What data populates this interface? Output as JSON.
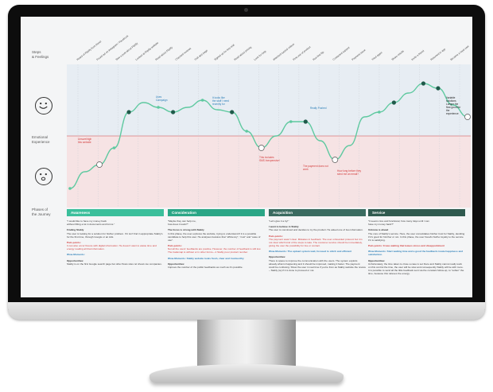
{
  "row_labels": {
    "steps": "Steps\n& Feelings",
    "emotion": "Emotional\nExperience",
    "phases": "Phases of\nthe Journey"
  },
  "steps": [
    "Heard of Fliplify from friend",
    "Found ad on Instagram / Facebook",
    "Saw a post about Fliplify",
    "Looked at Fliplify website",
    "Read about Fliplify",
    "Checked reviews",
    "Visit app page",
    "Signed up for free trial",
    "Read about pricing",
    "Look for help",
    "Watched tutorial videos",
    "First use of product",
    "Run first flip",
    "Contacted support",
    "Payment issue",
    "Tried again",
    "Share results",
    "Invite a friend",
    "Returned to app",
    "Became a loyal user"
  ],
  "annotations": {
    "a1": "Unsure/high\nthis website",
    "a2": "Uses\nCampaign",
    "a3": "It looks like\nthe stuff I need\nrecently for",
    "a4": "Really Pushed",
    "a5": "This includes\nSMS Inexpensive!",
    "a6": "The payment does not\nwork",
    "a7": "How long before they\nsend me an email?",
    "a8": "Variable\nsolutions\nLonger the\nflow good for\nthe\nexperience"
  },
  "chart_data": {
    "type": "line",
    "title": "",
    "xlabel": "",
    "ylabel": "Emotional Experience",
    "x": [
      1,
      2,
      3,
      4,
      5,
      6,
      7,
      8,
      9,
      10,
      11,
      12,
      13,
      14,
      15,
      16,
      17,
      18,
      19,
      20,
      21,
      22,
      23,
      24,
      25,
      26,
      27,
      28
    ],
    "values": [
      0.38,
      0.45,
      0.48,
      0.55,
      0.7,
      0.74,
      0.72,
      0.7,
      0.72,
      0.75,
      0.71,
      0.7,
      0.62,
      0.55,
      0.6,
      0.66,
      0.66,
      0.58,
      0.5,
      0.56,
      0.68,
      0.7,
      0.74,
      0.78,
      0.82,
      0.8,
      0.73,
      0.68
    ],
    "ylim": [
      0.3,
      0.9
    ],
    "neutral": 0.6,
    "line_color": "#5fc9a0",
    "positive_zone_color": "#e7edf3",
    "negative_zone_color": "#f6e3e4"
  },
  "phases": [
    {
      "name": "Awareness",
      "color": "#3bbf9b",
      "quote": "\"I would like to have my money back\nwithout filling a lot in documents and forms.\"",
      "title": "Finding Stably",
      "body": "The user is looking for a solution for his/her problem. If it isn't find in appropriate Stably's for the first time, through Google or an Ads.",
      "pain": "Pain-points:",
      "pain_text": "It can also occur fissure with digital information. He doesn't want to waste time and energy reading all that information.",
      "wow": "Wow-Moments:",
      "opp": "Opportunities:",
      "opp_text": "Stably is on the first Google search page but other flows sites rel shows too companies."
    },
    {
      "name": "Consideration",
      "color": "#2aa686",
      "quote": "\"Maybe they can help me,\nhow does it work?\"",
      "title": "The focus is strong with Stably",
      "body": "In this phase, the user explores the website, trying to understand if it is a possible candidate to help this user. He analyses features that \"efficiency\", \"cost\" and \"ease of use\".",
      "pain": "Pain-points:",
      "pain_text": "Not all the users' feedbacks are positive. However, the number of feedback is still low. The trademap is without or in other forms—1 Stably poor product number.",
      "wow": "Wow-Moments: Stably website looks fresh, clear and trustworthy",
      "opp": "Opportunities:",
      "opp_text": "Improve the number of the public feedbacks as much as it's possible."
    },
    {
      "name": "Acquisition",
      "color": "#3a6b60",
      "quote": "\"Let's give it a try!\"",
      "title": "I want to believe in Stably",
      "body": "The user is convinced and decides to try the product. He asked one of two information.",
      "pain": "Pain-points:",
      "pain_text": "The payment wasn't clear. Mistakes in feedback. The user onboarded protocol but it is not clear which kind of the steps to take. The customer service should be immediately, giving the user the possibility for live or contact.",
      "wow": "Wow-Moments: The upload system wait, focused to stitch and efficient",
      "opp": "Opportunities:",
      "opp_text": "There is space to improve the communication with the users. The system exploits already what is happening and it should be improved, making it faster. The payment could be confusing. Show the user in real time if you're from as Stably website the review – Stably (ie) if it is done to proceed or not."
    },
    {
      "name": "Service",
      "color": "#2f5a4f",
      "quote": "\"It seems nice and functional, how many days until I can\nhave my money back?\"",
      "title": "Unknow is ahead",
      "body": "The core of Stably's service. Here, the user consolidates his/her trust for Stably, deciding if it's good for him/her or not. In this phase, the user fixes/is his/her loyalty to the service if it is satisfying.",
      "pain": "Pain-points: It was waiting that leaves stress and disappointment",
      "pain_text": "",
      "wow": "Wow-Moments: Start waiting time and a good the feedback create happiness and satisfaction.",
      "opp": "Opportunities:",
      "opp_text": "Unfortunately, the time taken to close a case is set there and Stably cannot really work on this control the time, the user will be slow and consequently Stably will be with more. It is possible to send all the little feedback sent via the constant follow-up, to \"soften\" the time, because this relieves the energy."
    }
  ]
}
